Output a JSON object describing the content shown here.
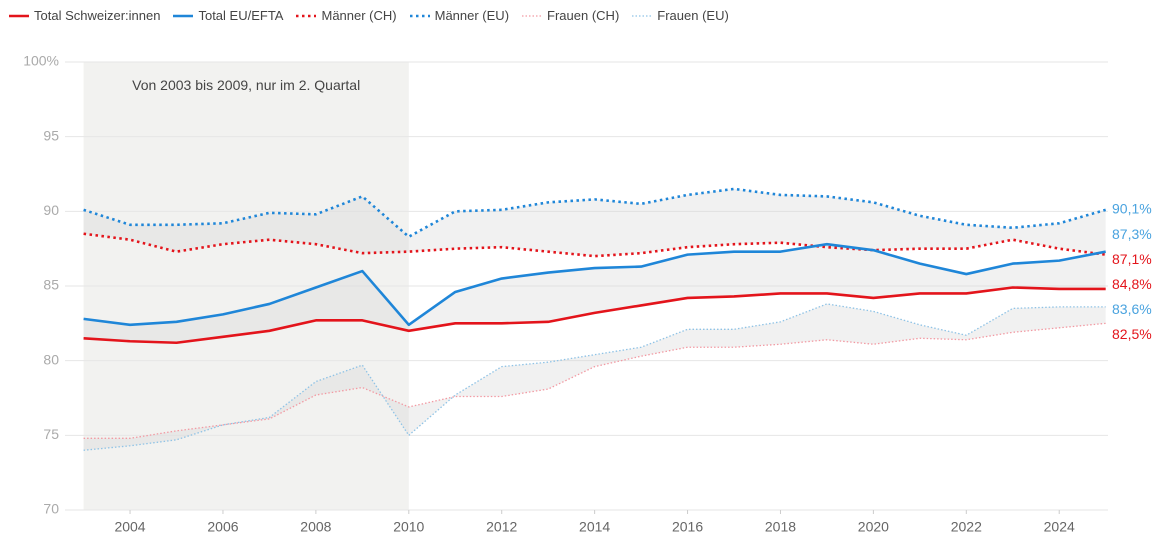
{
  "chart_data": {
    "type": "line",
    "x": [
      2003,
      2004,
      2005,
      2006,
      2007,
      2008,
      2009,
      2010,
      2011,
      2012,
      2013,
      2014,
      2015,
      2016,
      2017,
      2018,
      2019,
      2020,
      2021,
      2022,
      2023,
      2024,
      2025
    ],
    "series": [
      {
        "name": "Total Schweizer:innen",
        "color": "#e3141b",
        "style": "solid",
        "end_label": "84,8%",
        "values": [
          81.5,
          81.3,
          81.2,
          81.6,
          82.0,
          82.7,
          82.7,
          82.0,
          82.5,
          82.5,
          82.6,
          83.2,
          83.7,
          84.2,
          84.3,
          84.5,
          84.5,
          84.2,
          84.5,
          84.5,
          84.9,
          84.8,
          84.8
        ]
      },
      {
        "name": "Total EU/EFTA",
        "color": "#1f86d8",
        "style": "solid",
        "end_label": "87,3%",
        "values": [
          82.8,
          82.4,
          82.6,
          83.1,
          83.8,
          84.9,
          86.0,
          82.4,
          84.6,
          85.5,
          85.9,
          86.2,
          86.3,
          87.1,
          87.3,
          87.3,
          87.8,
          87.4,
          86.5,
          85.8,
          86.5,
          86.7,
          87.3
        ]
      },
      {
        "name": "Männer (CH)",
        "color": "#e3141b",
        "style": "dotted",
        "end_label": "87,1%",
        "values": [
          88.5,
          88.1,
          87.3,
          87.8,
          88.1,
          87.8,
          87.2,
          87.3,
          87.5,
          87.6,
          87.3,
          87.0,
          87.2,
          87.6,
          87.8,
          87.9,
          87.6,
          87.4,
          87.5,
          87.5,
          88.1,
          87.5,
          87.1
        ]
      },
      {
        "name": "Männer (EU)",
        "color": "#1f86d8",
        "style": "dotted",
        "end_label": "90,1%",
        "values": [
          90.1,
          89.1,
          89.1,
          89.2,
          89.9,
          89.8,
          91.0,
          88.3,
          90.0,
          90.1,
          90.6,
          90.8,
          90.5,
          91.1,
          91.5,
          91.1,
          91.0,
          90.6,
          89.7,
          89.1,
          88.9,
          89.2,
          90.1
        ]
      },
      {
        "name": "Frauen (CH)",
        "color": "#f29aa3",
        "style": "fine-dotted",
        "end_label": "82,5%",
        "values": [
          74.8,
          74.8,
          75.3,
          75.7,
          76.1,
          77.7,
          78.2,
          76.9,
          77.6,
          77.6,
          78.1,
          79.6,
          80.3,
          80.9,
          80.9,
          81.1,
          81.4,
          81.1,
          81.5,
          81.4,
          81.9,
          82.2,
          82.5
        ]
      },
      {
        "name": "Frauen (EU)",
        "color": "#8fc3e6",
        "style": "fine-dotted",
        "end_label": "83,6%",
        "values": [
          74.0,
          74.3,
          74.7,
          75.7,
          76.2,
          78.6,
          79.7,
          75.0,
          77.7,
          79.6,
          79.9,
          80.4,
          80.9,
          82.1,
          82.1,
          82.6,
          83.8,
          83.3,
          82.4,
          81.7,
          83.5,
          83.6,
          83.6
        ]
      }
    ],
    "highlight": {
      "x": [
        2003,
        2010
      ],
      "text": "Von 2003 bis 2009, nur im 2. Quartal"
    },
    "xlim": [
      2002.6,
      2025.05
    ],
    "xticks": [
      2004,
      2006,
      2008,
      2010,
      2012,
      2014,
      2016,
      2018,
      2020,
      2022,
      2024
    ],
    "ylim": [
      70,
      100
    ],
    "yticks": [
      70,
      75,
      80,
      85,
      90,
      95,
      {
        "value": 100,
        "label": "100%"
      }
    ],
    "grid": true
  }
}
